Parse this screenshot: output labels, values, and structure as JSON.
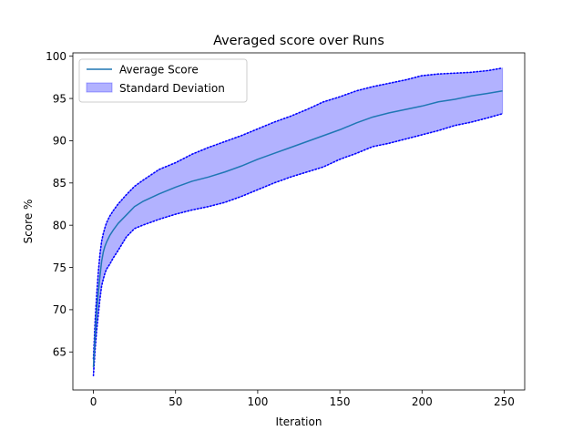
{
  "chart_data": {
    "type": "line",
    "title": "Averaged score over Runs",
    "xlabel": "Iteration",
    "ylabel": "Score %",
    "xlim": [
      -12.5,
      262.5
    ],
    "ylim": [
      60.5,
      100.4
    ],
    "xticks": [
      0,
      50,
      100,
      150,
      200,
      250
    ],
    "yticks": [
      65,
      70,
      75,
      80,
      85,
      90,
      95,
      100
    ],
    "grid": false,
    "legend_position": "top-left",
    "x": [
      0,
      1,
      2,
      3,
      4,
      5,
      6,
      7,
      8,
      10,
      12,
      15,
      20,
      25,
      30,
      40,
      50,
      60,
      70,
      80,
      90,
      100,
      110,
      120,
      130,
      140,
      150,
      160,
      170,
      180,
      190,
      200,
      210,
      220,
      230,
      240,
      249
    ],
    "series": [
      {
        "name": "Average Score",
        "kind": "line",
        "color": "#1f77b4",
        "values": [
          63.2,
          66.8,
          69.7,
          72.0,
          74.0,
          75.7,
          76.8,
          77.5,
          78.0,
          78.8,
          79.4,
          80.2,
          81.2,
          82.2,
          82.8,
          83.7,
          84.5,
          85.2,
          85.7,
          86.3,
          87.0,
          87.8,
          88.5,
          89.2,
          89.9,
          90.6,
          91.3,
          92.1,
          92.8,
          93.3,
          93.7,
          94.1,
          94.6,
          94.9,
          95.3,
          95.6,
          95.9
        ]
      },
      {
        "name": "Standard Deviation",
        "kind": "band",
        "color": "#0000ff",
        "upper": [
          64.2,
          68.5,
          71.8,
          74.5,
          76.6,
          78.1,
          79.0,
          79.7,
          80.3,
          81.1,
          81.7,
          82.5,
          83.6,
          84.6,
          85.3,
          86.6,
          87.4,
          88.4,
          89.2,
          89.9,
          90.6,
          91.4,
          92.2,
          92.9,
          93.7,
          94.6,
          95.2,
          95.9,
          96.4,
          96.8,
          97.2,
          97.7,
          97.9,
          98.0,
          98.1,
          98.3,
          98.6
        ],
        "lower": [
          62.2,
          65.2,
          67.6,
          69.5,
          71.3,
          72.8,
          73.6,
          74.3,
          74.8,
          75.4,
          76.1,
          77.0,
          78.6,
          79.6,
          80.0,
          80.7,
          81.3,
          81.8,
          82.2,
          82.7,
          83.4,
          84.2,
          85.0,
          85.7,
          86.3,
          86.9,
          87.8,
          88.5,
          89.3,
          89.7,
          90.2,
          90.7,
          91.2,
          91.8,
          92.2,
          92.7,
          93.2
        ]
      }
    ]
  }
}
